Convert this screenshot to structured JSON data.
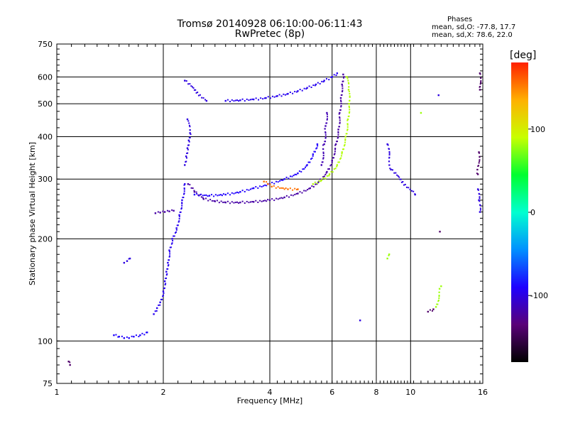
{
  "header": {
    "title_line1": "Tromsø 20140928 06:10:00-06:11:43",
    "title_line2": "RwPretec (8p)"
  },
  "phases_box": {
    "title": "Phases",
    "line1": "mean, sd,O: -77.8, 17.7",
    "line2": "mean, sd,X:  78.6, 22.0"
  },
  "colorbar": {
    "unit_label": "[deg]",
    "ticks": [
      {
        "label": "100",
        "value": 100
      },
      {
        "label": "0",
        "value": 0
      },
      {
        "label": "-100",
        "value": -100
      }
    ],
    "range": [
      -180,
      180
    ],
    "colors": [
      "#000000",
      "#5a0078",
      "#1f00ff",
      "#0090ff",
      "#00ffd0",
      "#00ff30",
      "#c8ff00",
      "#ffb000",
      "#ff2000"
    ]
  },
  "chart_data": {
    "type": "scatter",
    "title": "Tromsø 20140928 06:10:00-06:11:43",
    "subtitle": "RwPretec (8p)",
    "xlabel": "Frequency [MHz]",
    "ylabel": "Stationary phase Virtual Height [km]",
    "x_scale": "log",
    "y_scale": "log",
    "xlim": [
      1,
      16
    ],
    "ylim": [
      75,
      750
    ],
    "x_ticks": [
      1,
      2,
      4,
      6,
      8,
      10,
      16
    ],
    "x_tick_labels": [
      "1",
      "2",
      "4",
      "6",
      "8",
      "10",
      "16"
    ],
    "y_ticks": [
      75,
      100,
      200,
      300,
      400,
      500,
      600,
      750
    ],
    "y_tick_labels": [
      "75",
      "100",
      "200",
      "300",
      "400",
      "500",
      "600",
      "750"
    ],
    "grid": true,
    "color_by": "phase [deg]",
    "traces": [
      {
        "name": "",
        "phase": -140,
        "points": [
          [
            1.08,
            87
          ],
          [
            1.09,
            85
          ]
        ]
      },
      {
        "name": "",
        "phase": -90,
        "points": [
          [
            1.45,
            104
          ],
          [
            1.5,
            103
          ],
          [
            1.55,
            102
          ],
          [
            1.6,
            102
          ],
          [
            1.65,
            103
          ],
          [
            1.72,
            104
          ],
          [
            1.8,
            106
          ]
        ]
      },
      {
        "name": "",
        "phase": -100,
        "points": [
          [
            1.55,
            170
          ],
          [
            1.58,
            172
          ],
          [
            1.61,
            175
          ]
        ]
      },
      {
        "name": "",
        "phase": -95,
        "points": [
          [
            1.88,
            120
          ],
          [
            1.92,
            125
          ],
          [
            1.96,
            130
          ],
          [
            2.0,
            140
          ],
          [
            2.02,
            150
          ],
          [
            2.04,
            160
          ],
          [
            2.06,
            170
          ],
          [
            2.08,
            185
          ],
          [
            2.12,
            200
          ],
          [
            2.18,
            215
          ],
          [
            2.22,
            235
          ],
          [
            2.26,
            260
          ],
          [
            2.3,
            290
          ]
        ]
      },
      {
        "name": "",
        "phase": -120,
        "points": [
          [
            1.9,
            238
          ],
          [
            1.96,
            239
          ],
          [
            2.02,
            240
          ],
          [
            2.08,
            241
          ],
          [
            2.14,
            242
          ]
        ]
      },
      {
        "name": "",
        "phase": -100,
        "points": [
          [
            2.3,
            330
          ],
          [
            2.32,
            350
          ],
          [
            2.34,
            370
          ],
          [
            2.36,
            390
          ],
          [
            2.38,
            410
          ],
          [
            2.34,
            450
          ]
        ]
      },
      {
        "name": "",
        "phase": -120,
        "points": [
          [
            2.35,
            290
          ],
          [
            2.45,
            275
          ],
          [
            2.6,
            262
          ],
          [
            2.8,
            258
          ],
          [
            3.0,
            256
          ],
          [
            3.3,
            256
          ],
          [
            3.6,
            257
          ],
          [
            4.0,
            260
          ],
          [
            4.4,
            265
          ],
          [
            4.8,
            272
          ],
          [
            5.2,
            282
          ],
          [
            5.5,
            295
          ],
          [
            5.8,
            315
          ],
          [
            6.0,
            340
          ],
          [
            6.15,
            380
          ],
          [
            6.25,
            420
          ],
          [
            6.3,
            470
          ],
          [
            6.35,
            520
          ],
          [
            6.4,
            570
          ],
          [
            6.45,
            610
          ]
        ]
      },
      {
        "name": "",
        "phase": -115,
        "points": [
          [
            5.6,
            330
          ],
          [
            5.7,
            380
          ],
          [
            5.75,
            430
          ],
          [
            5.8,
            470
          ]
        ]
      },
      {
        "name": "",
        "phase": -90,
        "points": [
          [
            2.45,
            270
          ],
          [
            2.7,
            268
          ],
          [
            3.0,
            270
          ],
          [
            3.3,
            275
          ],
          [
            3.6,
            282
          ],
          [
            4.0,
            290
          ],
          [
            4.4,
            300
          ],
          [
            4.8,
            312
          ],
          [
            5.1,
            330
          ],
          [
            5.3,
            355
          ],
          [
            5.45,
            380
          ]
        ]
      },
      {
        "name": "",
        "phase": -95,
        "points": [
          [
            3.0,
            510
          ],
          [
            3.3,
            512
          ],
          [
            3.6,
            515
          ],
          [
            3.9,
            520
          ],
          [
            4.2,
            527
          ],
          [
            4.5,
            535
          ],
          [
            4.8,
            545
          ],
          [
            5.1,
            557
          ],
          [
            5.4,
            570
          ],
          [
            5.7,
            585
          ],
          [
            6.0,
            600
          ],
          [
            6.2,
            615
          ]
        ]
      },
      {
        "name": "",
        "phase": 85,
        "points": [
          [
            5.3,
            290
          ],
          [
            5.6,
            298
          ],
          [
            5.9,
            310
          ],
          [
            6.2,
            330
          ],
          [
            6.4,
            360
          ],
          [
            6.55,
            400
          ],
          [
            6.65,
            450
          ],
          [
            6.7,
            500
          ],
          [
            6.68,
            550
          ],
          [
            6.6,
            600
          ]
        ]
      },
      {
        "name": "",
        "phase": 155,
        "points": [
          [
            3.85,
            295
          ],
          [
            3.95,
            290
          ],
          [
            4.05,
            285
          ],
          [
            4.5,
            280
          ],
          [
            4.8,
            280
          ]
        ]
      },
      {
        "name": "",
        "phase": -100,
        "points": [
          [
            2.3,
            585
          ],
          [
            2.65,
            510
          ],
          [
            7.2,
            115
          ],
          [
            8.6,
            380
          ],
          [
            8.8,
            320
          ],
          [
            10.3,
            270
          ],
          [
            12.0,
            530
          ],
          [
            15.5,
            280
          ],
          [
            15.6,
            260
          ],
          [
            15.7,
            240
          ]
        ]
      },
      {
        "name": "",
        "phase": -140,
        "points": [
          [
            11.2,
            122
          ],
          [
            11.6,
            124
          ],
          [
            12.1,
            210
          ],
          [
            15.7,
            615
          ],
          [
            15.7,
            550
          ],
          [
            15.6,
            360
          ],
          [
            15.5,
            310
          ]
        ]
      },
      {
        "name": "",
        "phase": 80,
        "points": [
          [
            8.6,
            175
          ],
          [
            8.7,
            180
          ],
          [
            10.7,
            470
          ],
          [
            11.8,
            126
          ],
          [
            12.2,
            145
          ]
        ]
      }
    ]
  }
}
